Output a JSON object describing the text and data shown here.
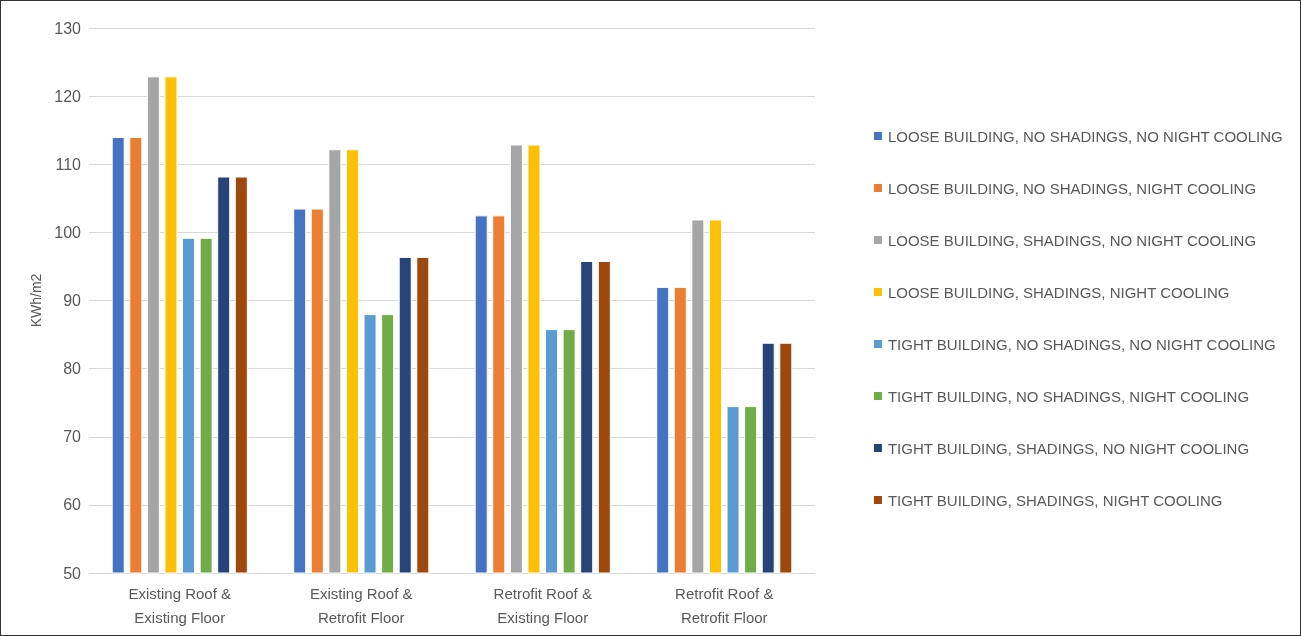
{
  "chart_data": {
    "type": "bar",
    "ylabel": "KWh/m2",
    "categories": [
      "Existing Roof &\nExisting Floor",
      "Existing Roof &\nRetrofit Floor",
      "Retrofit Roof &\nExisting Floor",
      "Retrofit Roof &\nRetrofit Floor"
    ],
    "series": [
      {
        "name": "LOOSE BUILDING, NO SHADINGS, NO NIGHT COOLING",
        "color": "#4472c4",
        "values": [
          114.0,
          103.5,
          102.5,
          92.0
        ]
      },
      {
        "name": "LOOSE BUILDING, NO SHADINGS, NIGHT COOLING",
        "color": "#ed7d31",
        "values": [
          114.0,
          103.5,
          102.5,
          92.0
        ]
      },
      {
        "name": "LOOSE BUILDING, SHADINGS, NO NIGHT COOLING",
        "color": "#a5a5a5",
        "values": [
          122.9,
          112.2,
          112.9,
          101.9
        ]
      },
      {
        "name": "LOOSE BUILDING, SHADINGS, NIGHT COOLING",
        "color": "#ffc000",
        "values": [
          122.9,
          112.2,
          112.9,
          101.9
        ]
      },
      {
        "name": "TIGHT BUILDING, NO SHADINGS, NO NIGHT COOLING",
        "color": "#5b9bd5",
        "values": [
          99.2,
          88.0,
          85.8,
          74.5
        ]
      },
      {
        "name": "TIGHT BUILDING, NO SHADINGS, NIGHT COOLING",
        "color": "#70ad47",
        "values": [
          99.2,
          88.0,
          85.8,
          74.5
        ]
      },
      {
        "name": "TIGHT BUILDING, SHADINGS, NO NIGHT COOLING",
        "color": "#264478",
        "values": [
          108.2,
          96.4,
          95.8,
          83.8
        ]
      },
      {
        "name": "TIGHT BUILDING, SHADINGS, NIGHT COOLING",
        "color": "#9e480e",
        "values": [
          108.2,
          96.4,
          95.8,
          83.8
        ]
      }
    ],
    "ylim": [
      50,
      130
    ],
    "yticks": [
      50,
      60,
      70,
      80,
      90,
      100,
      110,
      120,
      130
    ],
    "grid": "y",
    "legend": "right"
  }
}
